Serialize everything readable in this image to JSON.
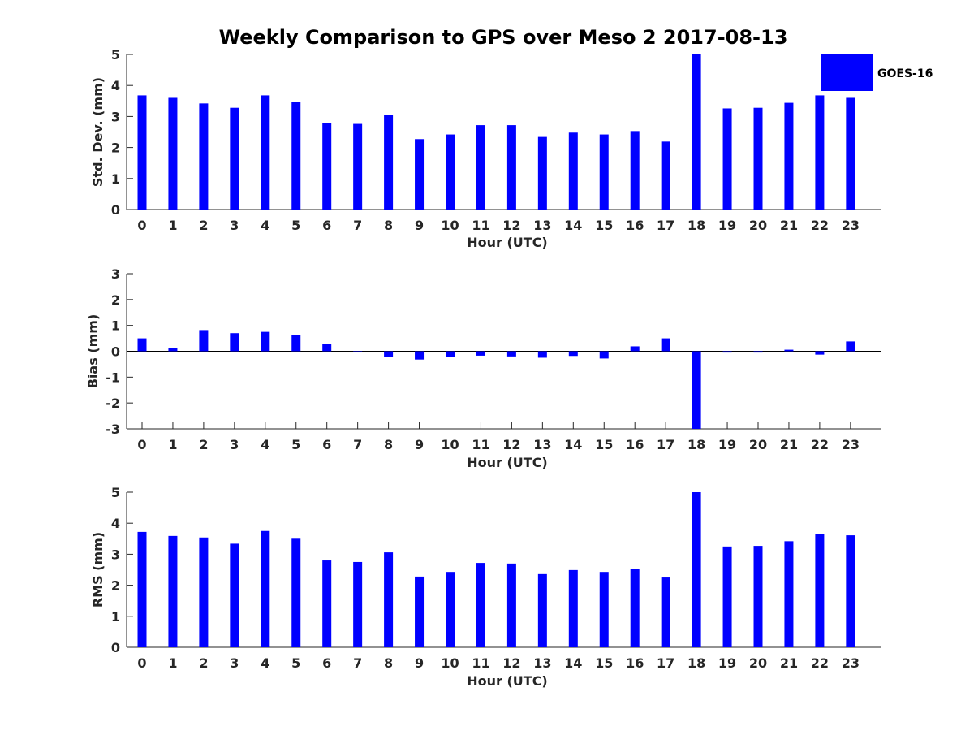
{
  "title": "Weekly Comparison to GPS over Meso 2 2017-08-13",
  "legend": {
    "label": "GOES-16",
    "color": "#0000ff"
  },
  "colors": {
    "bar": "#0000ff",
    "axis": "#262626"
  },
  "chart_data": [
    {
      "type": "bar",
      "name": "std-dev",
      "categories": [
        "0",
        "1",
        "2",
        "3",
        "4",
        "5",
        "6",
        "7",
        "8",
        "9",
        "10",
        "11",
        "12",
        "13",
        "14",
        "15",
        "16",
        "17",
        "18",
        "19",
        "20",
        "21",
        "22",
        "23"
      ],
      "values": [
        3.68,
        3.6,
        3.42,
        3.28,
        3.68,
        3.47,
        2.78,
        2.76,
        3.05,
        2.27,
        2.42,
        2.72,
        2.72,
        2.34,
        2.48,
        2.42,
        2.53,
        2.19,
        5.0,
        3.26,
        3.28,
        3.44,
        3.68,
        3.6
      ],
      "xlabel": "Hour (UTC)",
      "ylabel": "Std. Dev. (mm)",
      "ylim": [
        0,
        5
      ],
      "yticks": [
        "0",
        "1",
        "2",
        "3",
        "4",
        "5"
      ]
    },
    {
      "type": "bar",
      "name": "bias",
      "categories": [
        "0",
        "1",
        "2",
        "3",
        "4",
        "5",
        "6",
        "7",
        "8",
        "9",
        "10",
        "11",
        "12",
        "13",
        "14",
        "15",
        "16",
        "17",
        "18",
        "19",
        "20",
        "21",
        "22",
        "23"
      ],
      "values": [
        0.5,
        0.13,
        0.82,
        0.7,
        0.75,
        0.63,
        0.28,
        -0.04,
        -0.22,
        -0.32,
        -0.22,
        -0.17,
        -0.2,
        -0.25,
        -0.18,
        -0.28,
        0.19,
        0.5,
        -3.0,
        -0.05,
        -0.05,
        0.06,
        -0.13,
        0.38
      ],
      "xlabel": "Hour (UTC)",
      "ylabel": "Bias (mm)",
      "ylim": [
        -3,
        3
      ],
      "yticks": [
        "-3",
        "-2",
        "-1",
        "0",
        "1",
        "2",
        "3"
      ]
    },
    {
      "type": "bar",
      "name": "rms",
      "categories": [
        "0",
        "1",
        "2",
        "3",
        "4",
        "5",
        "6",
        "7",
        "8",
        "9",
        "10",
        "11",
        "12",
        "13",
        "14",
        "15",
        "16",
        "17",
        "18",
        "19",
        "20",
        "21",
        "22",
        "23"
      ],
      "values": [
        3.72,
        3.59,
        3.54,
        3.34,
        3.75,
        3.5,
        2.8,
        2.75,
        3.06,
        2.28,
        2.43,
        2.72,
        2.7,
        2.36,
        2.49,
        2.43,
        2.52,
        2.25,
        5.0,
        3.25,
        3.27,
        3.42,
        3.66,
        3.61
      ],
      "xlabel": "Hour (UTC)",
      "ylabel": "RMS (mm)",
      "ylim": [
        0,
        5
      ],
      "yticks": [
        "0",
        "1",
        "2",
        "3",
        "4",
        "5"
      ]
    }
  ]
}
